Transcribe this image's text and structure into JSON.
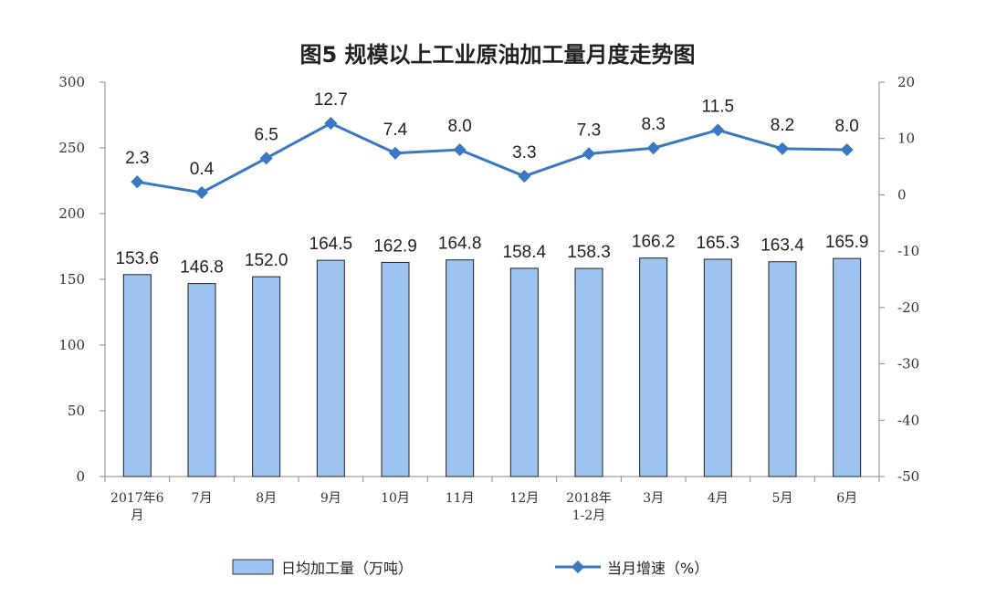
{
  "chart_data": {
    "type": "bar",
    "title": "图5 规模以上工业原油加工量月度走势图",
    "categories": [
      [
        "2017年6",
        "月"
      ],
      [
        "7月"
      ],
      [
        "8月"
      ],
      [
        "9月"
      ],
      [
        "10月"
      ],
      [
        "11月"
      ],
      [
        "12月"
      ],
      [
        "2018年",
        "1-2月"
      ],
      [
        "3月"
      ],
      [
        "4月"
      ],
      [
        "5月"
      ],
      [
        "6月"
      ]
    ],
    "bar_series": {
      "name": "日均加工量（万吨）",
      "values": [
        153.6,
        146.8,
        152.0,
        164.5,
        162.9,
        164.8,
        158.4,
        158.3,
        166.2,
        165.3,
        163.4,
        165.9
      ],
      "labels": [
        "153.6",
        "146.8",
        "152.0",
        "164.5",
        "162.9",
        "164.8",
        "158.4",
        "158.3",
        "166.2",
        "165.3",
        "163.4",
        "165.9"
      ],
      "color": "#9DC3F0",
      "axis": "left"
    },
    "line_series": {
      "name": "当月增速（%）",
      "values": [
        2.3,
        0.4,
        6.5,
        12.7,
        7.4,
        8.0,
        3.3,
        7.3,
        8.3,
        11.5,
        8.2,
        8.0
      ],
      "labels": [
        "2.3",
        "0.4",
        "6.5",
        "12.7",
        "7.4",
        "8.0",
        "3.3",
        "7.3",
        "8.3",
        "11.5",
        "8.2",
        "8.0"
      ],
      "color": "#3A78C4",
      "axis": "right"
    },
    "left_axis": {
      "ylim": [
        0,
        300
      ],
      "ticks": [
        "0",
        "50",
        "100",
        "150",
        "200",
        "250",
        "300"
      ]
    },
    "right_axis": {
      "ylim": [
        -50,
        20
      ],
      "ticks": [
        "-50",
        "-40",
        "-30",
        "-20",
        "-10",
        "0",
        "10",
        "20"
      ]
    },
    "grid": false,
    "legend_position": "bottom"
  }
}
